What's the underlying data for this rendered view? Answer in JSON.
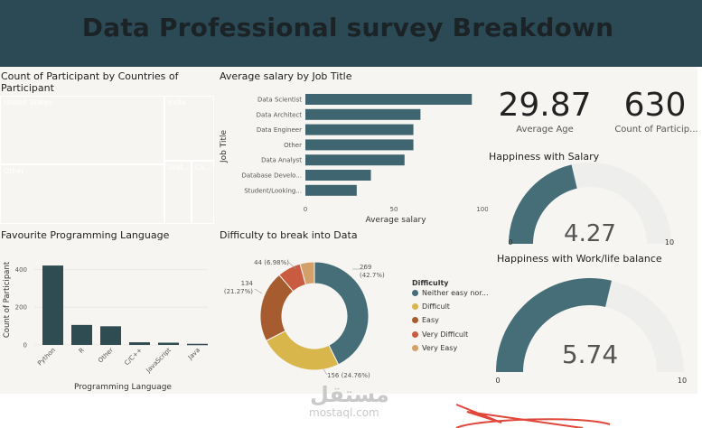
{
  "header": {
    "title": "Data Professional survey Breakdown"
  },
  "treemap": {
    "title": "Count of Participant by Countries of Participant",
    "cells": [
      {
        "label": "United States",
        "color": "#456e78"
      },
      {
        "label": "Other",
        "color": "#d8b64b"
      },
      {
        "label": "India",
        "color": "#a65c2e"
      },
      {
        "label": "Unit...",
        "color": "#c95c40"
      },
      {
        "label": "Ca...",
        "color": "#d4a06a"
      }
    ]
  },
  "salary": {
    "title": "Average salary by Job Title",
    "ylabel": "Job Title",
    "xlabel": "Average salary",
    "ticks": [
      "0",
      "50",
      "100"
    ],
    "color": "#3f6670"
  },
  "kpis": {
    "age_value": "29.87",
    "age_label": "Average Age",
    "count_value": "630",
    "count_label": "Count of Particip..."
  },
  "gauge_salary": {
    "title": "Happiness with Salary",
    "value": "4.27",
    "min": "0",
    "max": "10",
    "level": 0.427
  },
  "gauge_work": {
    "title": "Happiness with Work/life balance",
    "value": "5.74",
    "min": "0",
    "max": "10",
    "level": 0.574
  },
  "language": {
    "title": "Favourite Programming Language",
    "ylabel": "Count of Participant",
    "xlabel": "Programming Language",
    "yticks": [
      "0",
      "200",
      "400"
    ],
    "color": "#2f4c52"
  },
  "difficulty": {
    "title": "Difficulty to break into Data",
    "legend_title": "Difficulty",
    "labels": [
      {
        "line1": "269",
        "line2": "(42.7%)"
      },
      {
        "line1": "156 (24.76%)",
        "line2": ""
      },
      {
        "line1": "134",
        "line2": "(21.27%)"
      },
      {
        "line1": "44 (6.98%)",
        "line2": ""
      }
    ]
  },
  "watermark": {
    "arabic": "مستقل",
    "latin": "mostaql.com"
  },
  "chart_data": [
    {
      "type": "treemap",
      "title": "Count of Participant by Countries of Participant",
      "categories": [
        "United States",
        "Other",
        "India",
        "United Kingdom",
        "Canada"
      ]
    },
    {
      "type": "bar",
      "orientation": "horizontal",
      "title": "Average salary by Job Title",
      "xlabel": "Average salary",
      "ylabel": "Job Title",
      "xlim": [
        0,
        100
      ],
      "categories": [
        "Data Scientist",
        "Data Architect",
        "Data Engineer",
        "Other",
        "Data Analyst",
        "Database Develo...",
        "Student/Looking..."
      ],
      "values": [
        94,
        65,
        61,
        61,
        56,
        37,
        29
      ]
    },
    {
      "type": "bar",
      "title": "Favourite Programming Language",
      "xlabel": "Programming Language",
      "ylabel": "Count of Participant",
      "ylim": [
        0,
        450
      ],
      "categories": [
        "Python",
        "R",
        "Other",
        "C/C++",
        "JavaScript",
        "Java"
      ],
      "values": [
        421,
        106,
        99,
        14,
        12,
        6
      ]
    },
    {
      "type": "pie",
      "title": "Difficulty to break into Data",
      "legend_title": "Difficulty",
      "legend_position": "right",
      "categories": [
        "Neither easy nor...",
        "Difficult",
        "Easy",
        "Very Difficult",
        "Very Easy"
      ],
      "values": [
        269,
        156,
        134,
        44,
        27
      ],
      "colors": [
        "#456e78",
        "#d8b64b",
        "#a65c2e",
        "#c95c40",
        "#d4a06a"
      ]
    }
  ]
}
